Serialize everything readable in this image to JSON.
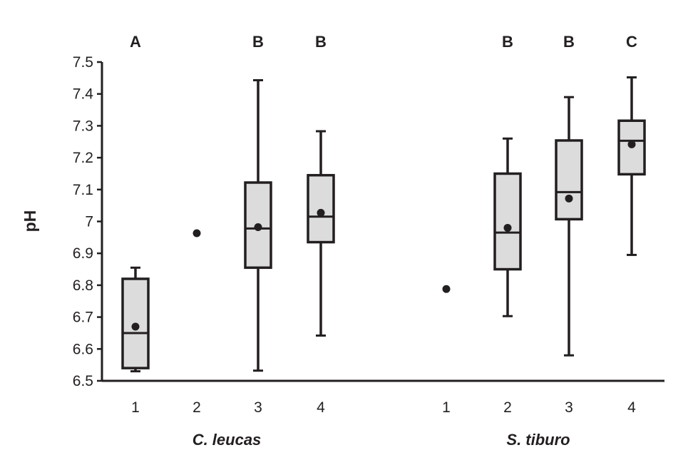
{
  "chart_data": {
    "type": "boxplot",
    "ylabel": "pH",
    "ylim": [
      6.5,
      7.5
    ],
    "yticks": [
      6.5,
      6.6,
      6.7,
      6.8,
      6.9,
      7,
      7.1,
      7.2,
      7.3,
      7.4,
      7.5
    ],
    "ytick_labels": [
      "6.5",
      "6.6",
      "6.7",
      "6.8",
      "6.9",
      "7",
      "7.1",
      "7.2",
      "7.3",
      "7.4",
      "7.5"
    ],
    "grid": false,
    "colors": {
      "box_fill": "#dcdcdd",
      "ink": "#231f20"
    },
    "groups": [
      {
        "label": "C. leucas",
        "categories": [
          "1",
          "2",
          "3",
          "4"
        ]
      },
      {
        "label": "S. tiburo",
        "categories": [
          "1",
          "2",
          "3",
          "4"
        ]
      }
    ],
    "boxes": [
      {
        "group": "C. leucas",
        "category": "1",
        "letter": "A",
        "min": 6.53,
        "q1": 6.54,
        "median": 6.65,
        "q3": 6.82,
        "max": 6.855,
        "mean": 6.67
      },
      {
        "group": "C. leucas",
        "category": "2",
        "letter": "",
        "min": null,
        "q1": null,
        "median": null,
        "q3": null,
        "max": null,
        "mean": 6.963
      },
      {
        "group": "C. leucas",
        "category": "3",
        "letter": "B",
        "min": 6.532,
        "q1": 6.855,
        "median": 6.978,
        "q3": 7.122,
        "max": 7.443,
        "mean": 6.982
      },
      {
        "group": "C. leucas",
        "category": "4",
        "letter": "B",
        "min": 6.642,
        "q1": 6.935,
        "median": 7.015,
        "q3": 7.145,
        "max": 7.283,
        "mean": 7.027
      },
      {
        "group": "S. tiburo",
        "category": "1",
        "letter": "",
        "min": null,
        "q1": null,
        "median": null,
        "q3": null,
        "max": null,
        "mean": 6.788
      },
      {
        "group": "S. tiburo",
        "category": "2",
        "letter": "B",
        "min": 6.703,
        "q1": 6.85,
        "median": 6.965,
        "q3": 7.15,
        "max": 7.26,
        "mean": 6.98
      },
      {
        "group": "S. tiburo",
        "category": "3",
        "letter": "B",
        "min": 6.58,
        "q1": 7.007,
        "median": 7.092,
        "q3": 7.254,
        "max": 7.39,
        "mean": 7.072
      },
      {
        "group": "S. tiburo",
        "category": "4",
        "letter": "C",
        "min": 6.895,
        "q1": 7.148,
        "median": 7.253,
        "q3": 7.316,
        "max": 7.452,
        "mean": 7.242
      }
    ]
  }
}
